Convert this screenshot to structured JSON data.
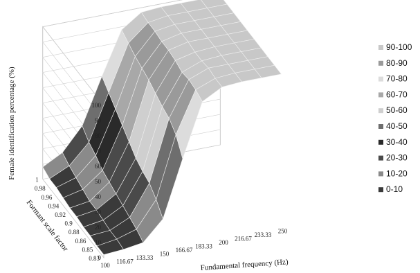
{
  "chart_data": {
    "type": "surface",
    "title": "",
    "xlabel": "Fundamental frequency (Hz)",
    "ylabel": "Formant scale factor",
    "zlabel": "Female identification percentage (%)",
    "x": [
      "100",
      "116.67",
      "133.33",
      "150",
      "166.67",
      "183.33",
      "200",
      "216.67",
      "233.33",
      "250"
    ],
    "y": [
      "0.83",
      "0.85",
      "0.86",
      "0.88",
      "0.9",
      "0.92",
      "0.94",
      "0.96",
      "0.98",
      "1"
    ],
    "z_ticks": [
      "0",
      "10",
      "20",
      "30",
      "40",
      "50",
      "60",
      "70",
      "80",
      "90",
      "100"
    ],
    "zlim": [
      0,
      100
    ],
    "z": [
      [
        2,
        3,
        5,
        18,
        55,
        90,
        97,
        98,
        98,
        98
      ],
      [
        2,
        4,
        8,
        25,
        65,
        92,
        97,
        98,
        98,
        98
      ],
      [
        3,
        4,
        10,
        30,
        70,
        93,
        98,
        98,
        98,
        98
      ],
      [
        3,
        5,
        12,
        32,
        72,
        92,
        97,
        98,
        98,
        98
      ],
      [
        4,
        6,
        14,
        35,
        75,
        94,
        97,
        98,
        98,
        98
      ],
      [
        4,
        6,
        16,
        40,
        78,
        95,
        98,
        98,
        98,
        98
      ],
      [
        5,
        8,
        18,
        45,
        80,
        95,
        98,
        98,
        98,
        98
      ],
      [
        6,
        10,
        22,
        50,
        82,
        96,
        98,
        98,
        98,
        98
      ],
      [
        6,
        12,
        25,
        55,
        85,
        96,
        98,
        98,
        98,
        98
      ],
      [
        8,
        15,
        30,
        60,
        88,
        97,
        98,
        98,
        98,
        98
      ]
    ],
    "legend": {
      "position": "right",
      "entries": [
        {
          "label": "90-100",
          "color": "#c8c8c8"
        },
        {
          "label": "80-90",
          "color": "#9a9a9a"
        },
        {
          "label": "70-80",
          "color": "#dcdcdc"
        },
        {
          "label": "60-70",
          "color": "#a8a8a8"
        },
        {
          "label": "50-60",
          "color": "#cfcfcf"
        },
        {
          "label": "40-50",
          "color": "#6e6e6e"
        },
        {
          "label": "30-40",
          "color": "#2a2a2a"
        },
        {
          "label": "20-30",
          "color": "#4a4a4a"
        },
        {
          "label": "10-20",
          "color": "#8a8a8a"
        },
        {
          "label": "0-10",
          "color": "#3a3a3a"
        }
      ]
    },
    "grid": true
  }
}
